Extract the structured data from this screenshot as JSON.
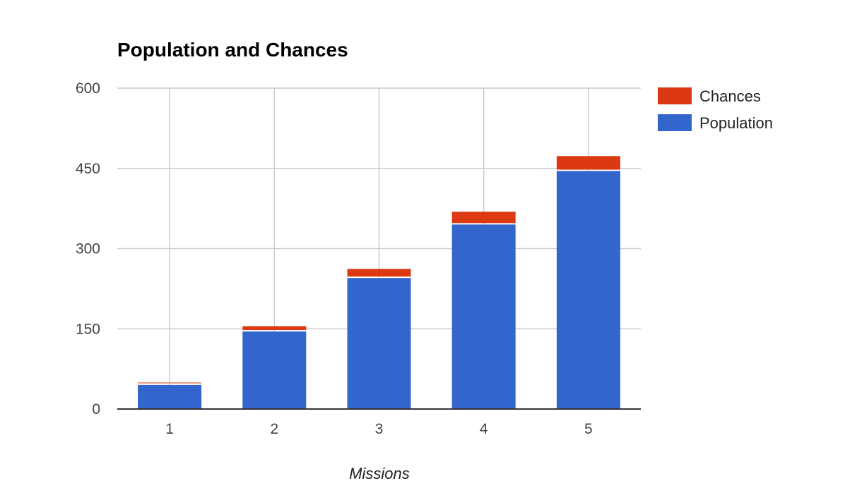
{
  "chart_data": {
    "type": "bar",
    "stacked": true,
    "title": "Population and Chances",
    "xlabel": "Missions",
    "ylabel": "",
    "categories": [
      "1",
      "2",
      "3",
      "4",
      "5"
    ],
    "ylim": [
      0,
      600
    ],
    "yticks": [
      "0",
      "150",
      "300",
      "450",
      "600"
    ],
    "grid": true,
    "legend_position": "right",
    "series": [
      {
        "name": "Population",
        "color": "#3366cc",
        "values": [
          45,
          145,
          245,
          345,
          445
        ]
      },
      {
        "name": "Chances",
        "color": "#dc3912",
        "values": [
          5,
          10,
          17,
          24,
          28
        ]
      }
    ],
    "legend": [
      {
        "name": "Chances",
        "color": "#dc3912"
      },
      {
        "name": "Population",
        "color": "#3366cc"
      }
    ]
  }
}
